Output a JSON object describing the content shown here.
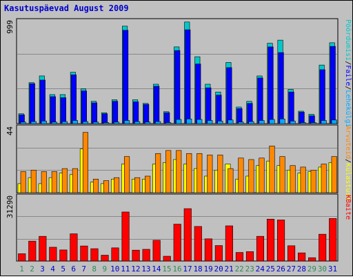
{
  "title": "Kasutuspäevad August 2009",
  "colors": {
    "page_bg": "#c0c0c0",
    "grid": "#888888",
    "title": "#0000cc",
    "weekday_label": "#0000cc",
    "weekend_label": "#2e8b57",
    "hits": "#00aaff",
    "files": "#0000ff",
    "pages": "#00c8c8",
    "visits": "#ffff00",
    "sites": "#ff8800",
    "kbytes": "#ff0000"
  },
  "chart_data": [
    {
      "type": "bar",
      "panel": "top",
      "y_tick_label": "999",
      "ylim": [
        0,
        999
      ],
      "grid": true,
      "series": [
        {
          "name": "Pöördumisi",
          "values": [
            95,
            395,
            460,
            280,
            280,
            495,
            335,
            215,
            105,
            230,
            940,
            230,
            195,
            380,
            115,
            740,
            980,
            645,
            380,
            305,
            590,
            160,
            215,
            460,
            775,
            805,
            330,
            120,
            90,
            565,
            780
          ]
        },
        {
          "name": "Faile",
          "values": [
            85,
            385,
            420,
            260,
            250,
            470,
            315,
            200,
            95,
            215,
            900,
            210,
            185,
            360,
            105,
            705,
            905,
            575,
            345,
            275,
            540,
            145,
            195,
            440,
            740,
            685,
            305,
            110,
            75,
            520,
            745
          ]
        },
        {
          "name": "Lehekülgi",
          "values": [
            15,
            20,
            25,
            15,
            20,
            30,
            20,
            15,
            10,
            15,
            30,
            20,
            15,
            20,
            10,
            40,
            45,
            40,
            30,
            25,
            35,
            15,
            20,
            30,
            40,
            45,
            25,
            10,
            10,
            30,
            35
          ]
        }
      ],
      "legend": [
        "Pöördumisi",
        "/",
        "Faile",
        "/",
        "Lehekülgi"
      ]
    },
    {
      "type": "bar",
      "panel": "middle",
      "y_tick_label": "44",
      "ylim": [
        0,
        44
      ],
      "grid": true,
      "series": [
        {
          "name": "Külastusi",
          "values": [
            6,
            10,
            6,
            10,
            13,
            12,
            29,
            7,
            6,
            9,
            19,
            9,
            9,
            19,
            20,
            22,
            19,
            16,
            11,
            15,
            19,
            9,
            11,
            18,
            21,
            18,
            15,
            13,
            14,
            17,
            20
          ]
        },
        {
          "name": "Arvuteid",
          "values": [
            14,
            15,
            14,
            14,
            16,
            16,
            40,
            9,
            8,
            10,
            24,
            10,
            11,
            26,
            28,
            28,
            26,
            26,
            25,
            25,
            16,
            23,
            22,
            23,
            31,
            24,
            18,
            17,
            15,
            19,
            24
          ]
        }
      ],
      "legend": [
        "Arvuteid",
        "/",
        "Külastusi"
      ]
    },
    {
      "type": "bar",
      "panel": "bottom",
      "y_tick_label": "31290",
      "ylim": [
        0,
        31290
      ],
      "grid": true,
      "series": [
        {
          "name": "KBaite",
          "values": [
            3500,
            9500,
            11800,
            6600,
            5300,
            13000,
            7200,
            5900,
            2800,
            6300,
            23400,
            5200,
            5600,
            9900,
            2300,
            17600,
            25000,
            16500,
            10600,
            7400,
            16800,
            4100,
            4500,
            11800,
            20000,
            19600,
            7300,
            3900,
            1600,
            12800,
            20300
          ]
        }
      ],
      "legend": [
        "KBaite"
      ]
    }
  ],
  "x_labels": [
    "1",
    "2",
    "3",
    "4",
    "5",
    "6",
    "7",
    "8",
    "9",
    "10",
    "11",
    "12",
    "13",
    "14",
    "15",
    "16",
    "17",
    "18",
    "19",
    "20",
    "21",
    "22",
    "23",
    "24",
    "25",
    "26",
    "27",
    "28",
    "29",
    "30",
    "31"
  ],
  "weekend_days": [
    1,
    2,
    8,
    9,
    15,
    16,
    22,
    23,
    29,
    30
  ]
}
